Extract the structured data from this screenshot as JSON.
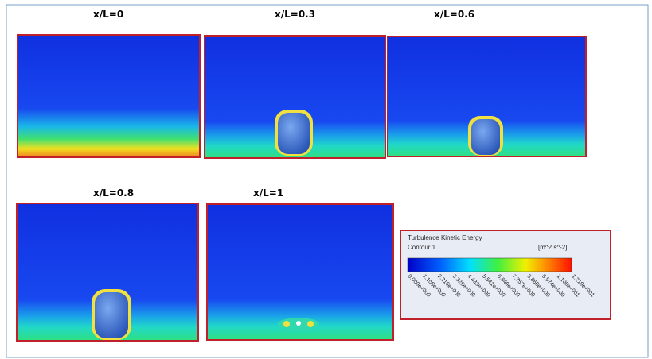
{
  "panels": [
    {
      "label": "x/L=0"
    },
    {
      "label": "x/L=0.3"
    },
    {
      "label": "x/L=0.6"
    },
    {
      "label": "x/L=0.8"
    },
    {
      "label": "x/L=1"
    }
  ],
  "legend": {
    "title": "Turbulence Kinetic Energy",
    "subtitle": "Contour 1",
    "unit": "[m^2 s^-2]",
    "ticks": [
      "0.000e+000",
      "1.108e+000",
      "2.216e+000",
      "3.325e+000",
      "4.433e+000",
      "5.541e+000",
      "6.649e+000",
      "7.757e+000",
      "8.866e+000",
      "9.974e+000",
      "1.108e+001",
      "1.219e+001"
    ]
  }
}
